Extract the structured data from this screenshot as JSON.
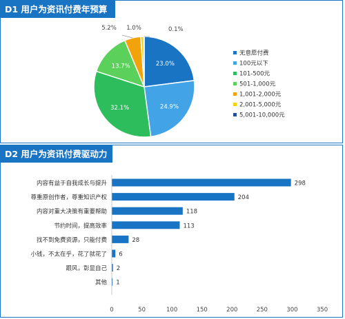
{
  "colors": {
    "title_bg": "#1a74c4",
    "bar": "#1a74c4"
  },
  "chart_data": [
    {
      "type": "pie",
      "title": "D1 用户为资讯付费年预算",
      "legend_position": "right",
      "slices": [
        {
          "label": "无意愿付费",
          "value": 23.0,
          "display": "23.0%",
          "color": "#1a74c4"
        },
        {
          "label": "100元以下",
          "value": 24.9,
          "display": "24.9%",
          "color": "#42a4e6"
        },
        {
          "label": "101-500元",
          "value": 32.1,
          "display": "32.1%",
          "color": "#2ebd5c"
        },
        {
          "label": "501-1,000元",
          "value": 13.7,
          "display": "13.7%",
          "color": "#5bd05b"
        },
        {
          "label": "1,001-2,000元",
          "value": 5.2,
          "display": "5.2%",
          "color": "#f2a20a"
        },
        {
          "label": "2,001-5,000元",
          "value": 1.0,
          "display": "1.0%",
          "color": "#f7d20a"
        },
        {
          "label": "5,001-10,000元",
          "value": 0.1,
          "display": "0.1%",
          "color": "#1f4f99"
        }
      ]
    },
    {
      "type": "bar",
      "orientation": "horizontal",
      "title": "D2 用户为资讯付费驱动力",
      "categories": [
        "内容有益于自我成长与提升",
        "尊重原创作者，尊重知识产权",
        "内容对重大决策有重要帮助",
        "节约时间，提高效率",
        "找不到免费资源，只能付费",
        "小钱，不太在乎，花了就花了",
        "跟风，彰显自己",
        "其他"
      ],
      "values": [
        298,
        204,
        118,
        113,
        28,
        6,
        2,
        1
      ],
      "xlim": [
        0,
        350
      ],
      "xticks": [
        0,
        50,
        100,
        150,
        200,
        250,
        300,
        350
      ]
    }
  ]
}
